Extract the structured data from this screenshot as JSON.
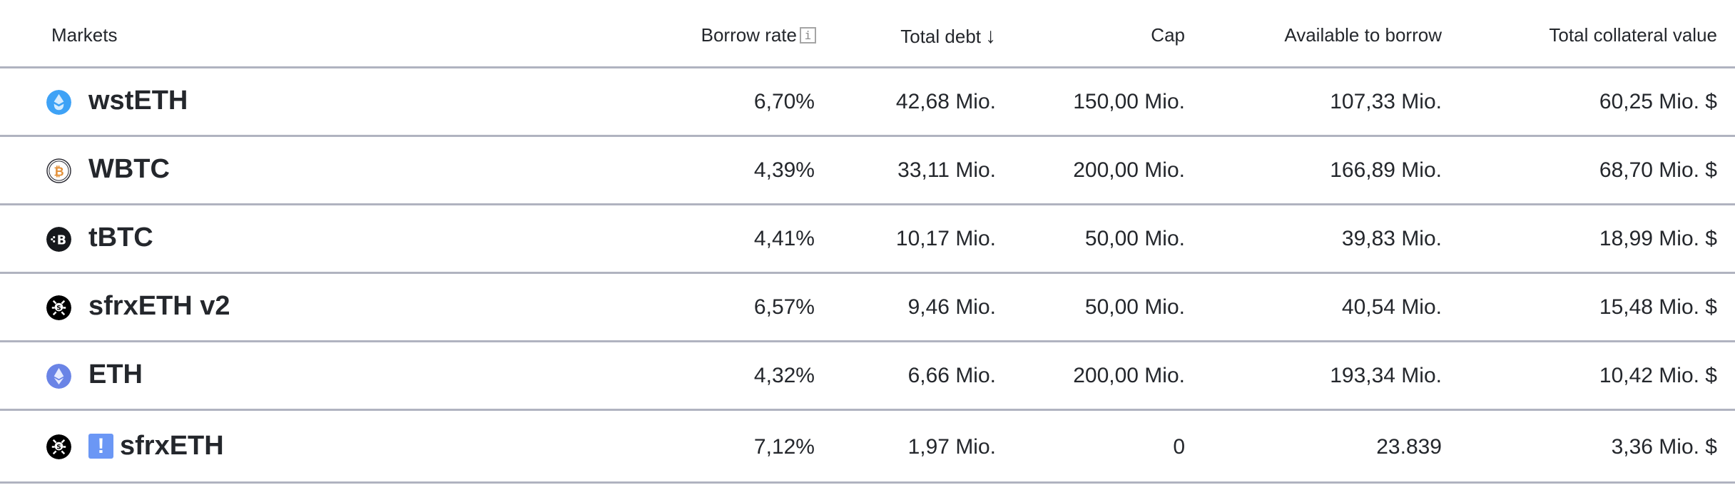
{
  "header": {
    "markets": "Markets",
    "borrow_rate": "Borrow rate",
    "borrow_rate_info_icon": "i",
    "total_debt": "Total debt",
    "sort_indicator": "↓",
    "cap": "Cap",
    "available_to_borrow": "Available to borrow",
    "total_collateral_value": "Total collateral value"
  },
  "rows": [
    {
      "market": "wstETH",
      "icon": "wsteth-icon",
      "borrow_rate": "6,70%",
      "total_debt": "42,68 Mio.",
      "cap": "150,00 Mio.",
      "available": "107,33 Mio.",
      "collateral": "60,25 Mio. $"
    },
    {
      "market": "WBTC",
      "icon": "wbtc-icon",
      "borrow_rate": "4,39%",
      "total_debt": "33,11 Mio.",
      "cap": "200,00 Mio.",
      "available": "166,89 Mio.",
      "collateral": "68,70 Mio. $"
    },
    {
      "market": "tBTC",
      "icon": "tbtc-icon",
      "borrow_rate": "4,41%",
      "total_debt": "10,17 Mio.",
      "cap": "50,00 Mio.",
      "available": "39,83 Mio.",
      "collateral": "18,99 Mio. $"
    },
    {
      "market": "sfrxETH v2",
      "icon": "sfrxeth-icon",
      "borrow_rate": "6,57%",
      "total_debt": "9,46 Mio.",
      "cap": "50,00 Mio.",
      "available": "40,54 Mio.",
      "collateral": "15,48 Mio. $"
    },
    {
      "market": "ETH",
      "icon": "eth-icon",
      "borrow_rate": "4,32%",
      "total_debt": "6,66 Mio.",
      "cap": "200,00 Mio.",
      "available": "193,34 Mio.",
      "collateral": "10,42 Mio. $"
    },
    {
      "market": "sfrxETH",
      "icon": "sfrxeth-icon",
      "warning": "!",
      "borrow_rate": "7,12%",
      "total_debt": "1,97 Mio.",
      "cap": "0",
      "available": "23.839",
      "collateral": "3,36 Mio. $"
    }
  ],
  "colors": {
    "divider": "#b0b3c0",
    "text": "#24272c",
    "warning": "#6b97f5",
    "wsteth": "#3ea2f6",
    "eth": "#6a84e6",
    "wbtc_orange": "#e3913a"
  }
}
